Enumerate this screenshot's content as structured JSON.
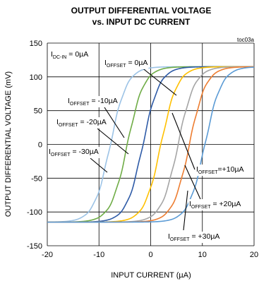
{
  "chart_data": {
    "type": "line",
    "title": "OUTPUT DIFFERENTIAL VOLTAGE",
    "subtitle": "vs. INPUT DC CURRENT",
    "figure_id": "toc03a",
    "xlabel": "INPUT CURRENT (µA)",
    "ylabel": "OUTPUT DIFFERENTIAL VOLTAGE (mV)",
    "xlim": [
      -20,
      20
    ],
    "ylim": [
      -150,
      150
    ],
    "x_ticks": [
      -20,
      -10,
      0,
      10,
      20
    ],
    "y_ticks": [
      -150,
      -100,
      -50,
      0,
      50,
      100,
      150
    ],
    "grid": true,
    "condition": {
      "main": "I",
      "sub": "DC-IN",
      "rest": " = 0µA"
    },
    "series": [
      {
        "name": "IOFFSET = -30µA",
        "offset": -30,
        "color": "#9cc3e6"
      },
      {
        "name": "IOFFSET = -20µA",
        "offset": -20,
        "color": "#6fac46"
      },
      {
        "name": "IOFFSET = -10µA",
        "offset": -10,
        "color": "#2e5ba7"
      },
      {
        "name": "IOFFSET = 0µA",
        "offset": 0,
        "color": "#ffc000"
      },
      {
        "name": "IOFFSET = +10µA",
        "offset": 10,
        "color": "#a5a5a5"
      },
      {
        "name": "IOFFSET = +20µA",
        "offset": 20,
        "color": "#ed7d31"
      },
      {
        "name": "IOFFSET = +30µA",
        "offset": 30,
        "color": "#5b9bd5"
      }
    ],
    "curve_model": {
      "shape": "tanh",
      "y_amplitude": 115,
      "x_center_by_offset": {
        "-30": -7.8,
        "-20": -4.5,
        "-10": -1.5,
        "0": 2.0,
        "10": 5.3,
        "20": 7.5,
        "30": 10.5
      },
      "x_scale": 3.2
    },
    "annotations": [
      {
        "main": "I",
        "sub": "OFFSET",
        "rest": " = 0µA"
      },
      {
        "main": "I",
        "sub": "OFFSET",
        "rest": " = -10µA"
      },
      {
        "main": "I",
        "sub": "OFFSET",
        "rest": " = -20µA"
      },
      {
        "main": "I",
        "sub": "OFFSET",
        "rest": " = -30µA"
      },
      {
        "main": "I",
        "sub": "OFFSET",
        "rest": "=+10µA"
      },
      {
        "main": "I",
        "sub": "OFFSET",
        "rest": " = +20µA"
      },
      {
        "main": "I",
        "sub": "OFFSET",
        "rest": " = +30µA"
      }
    ]
  }
}
